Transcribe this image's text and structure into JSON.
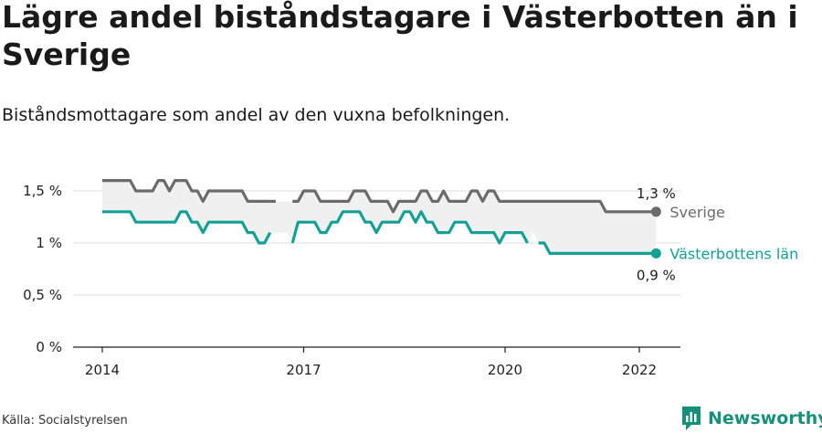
{
  "title": "Lägre andel biståndstagare i Västerbotten än i Sverige",
  "subtitle": "Biståndsmottagare som andel av den vuxna befolkningen.",
  "source": "Källa: Socialstyrelsen",
  "brand": {
    "name": "Newsworthy",
    "icon": "newsworthy-logo-icon",
    "color": "#16907a"
  },
  "chart_data": {
    "type": "line",
    "x_ticks": [
      "2014",
      "2017",
      "2020",
      "2022"
    ],
    "y_ticks": [
      "0 %",
      "0,5 %",
      "1 %",
      "1,5 %"
    ],
    "ylim": [
      0,
      1.6
    ],
    "grid": true,
    "series": [
      {
        "name": "Sverige",
        "color": "#6b6b6b",
        "end_label": "1,3 %",
        "points": [
          [
            "2014-01",
            1.6
          ],
          [
            "2014-02",
            1.6
          ],
          [
            "2014-03",
            1.6
          ],
          [
            "2014-04",
            1.6
          ],
          [
            "2014-05",
            1.6
          ],
          [
            "2014-06",
            1.6
          ],
          [
            "2014-07",
            1.5
          ],
          [
            "2014-08",
            1.5
          ],
          [
            "2014-09",
            1.5
          ],
          [
            "2014-10",
            1.5
          ],
          [
            "2014-11",
            1.6
          ],
          [
            "2014-12",
            1.6
          ],
          [
            "2015-01",
            1.5
          ],
          [
            "2015-02",
            1.6
          ],
          [
            "2015-03",
            1.6
          ],
          [
            "2015-04",
            1.6
          ],
          [
            "2015-05",
            1.5
          ],
          [
            "2015-06",
            1.5
          ],
          [
            "2015-07",
            1.4
          ],
          [
            "2015-08",
            1.5
          ],
          [
            "2015-09",
            1.5
          ],
          [
            "2015-10",
            1.5
          ],
          [
            "2015-11",
            1.5
          ],
          [
            "2015-12",
            1.5
          ],
          [
            "2016-01",
            1.5
          ],
          [
            "2016-02",
            1.5
          ],
          [
            "2016-03",
            1.4
          ],
          [
            "2016-04",
            1.4
          ],
          [
            "2016-05",
            1.4
          ],
          [
            "2016-06",
            1.4
          ],
          [
            "2016-07",
            1.4
          ],
          [
            "2016-08",
            1.4
          ],
          [
            "2016-09",
            null
          ],
          [
            "2016-10",
            null
          ],
          [
            "2016-11",
            1.4
          ],
          [
            "2016-12",
            1.4
          ],
          [
            "2017-01",
            1.5
          ],
          [
            "2017-02",
            1.5
          ],
          [
            "2017-03",
            1.5
          ],
          [
            "2017-04",
            1.4
          ],
          [
            "2017-05",
            1.4
          ],
          [
            "2017-06",
            1.4
          ],
          [
            "2017-07",
            1.4
          ],
          [
            "2017-08",
            1.4
          ],
          [
            "2017-09",
            1.4
          ],
          [
            "2017-10",
            1.5
          ],
          [
            "2017-11",
            1.5
          ],
          [
            "2017-12",
            1.5
          ],
          [
            "2018-01",
            1.4
          ],
          [
            "2018-02",
            1.4
          ],
          [
            "2018-03",
            1.4
          ],
          [
            "2018-04",
            1.4
          ],
          [
            "2018-05",
            1.3
          ],
          [
            "2018-06",
            1.4
          ],
          [
            "2018-07",
            1.4
          ],
          [
            "2018-08",
            1.4
          ],
          [
            "2018-09",
            1.4
          ],
          [
            "2018-10",
            1.5
          ],
          [
            "2018-11",
            1.5
          ],
          [
            "2018-12",
            1.4
          ],
          [
            "2019-01",
            1.4
          ],
          [
            "2019-02",
            1.5
          ],
          [
            "2019-03",
            1.4
          ],
          [
            "2019-04",
            1.4
          ],
          [
            "2019-05",
            1.4
          ],
          [
            "2019-06",
            1.4
          ],
          [
            "2019-07",
            1.5
          ],
          [
            "2019-08",
            1.5
          ],
          [
            "2019-09",
            1.4
          ],
          [
            "2019-10",
            1.5
          ],
          [
            "2019-11",
            1.5
          ],
          [
            "2019-12",
            1.4
          ],
          [
            "2020-01",
            1.4
          ],
          [
            "2020-02",
            1.4
          ],
          [
            "2020-03",
            1.4
          ],
          [
            "2020-04",
            1.4
          ],
          [
            "2020-05",
            1.4
          ],
          [
            "2020-06",
            1.4
          ],
          [
            "2020-07",
            1.4
          ],
          [
            "2020-08",
            1.4
          ],
          [
            "2020-09",
            1.4
          ],
          [
            "2020-10",
            1.4
          ],
          [
            "2020-11",
            1.4
          ],
          [
            "2020-12",
            1.4
          ],
          [
            "2021-01",
            1.4
          ],
          [
            "2021-02",
            1.4
          ],
          [
            "2021-03",
            1.4
          ],
          [
            "2021-04",
            1.4
          ],
          [
            "2021-05",
            1.4
          ],
          [
            "2021-06",
            1.4
          ],
          [
            "2021-07",
            1.3
          ],
          [
            "2021-08",
            1.3
          ],
          [
            "2021-09",
            1.3
          ],
          [
            "2021-10",
            1.3
          ],
          [
            "2021-11",
            1.3
          ],
          [
            "2021-12",
            1.3
          ],
          [
            "2022-01",
            1.3
          ],
          [
            "2022-02",
            1.3
          ],
          [
            "2022-03",
            1.3
          ],
          [
            "2022-04",
            1.3
          ]
        ]
      },
      {
        "name": "Västerbottens län",
        "color": "#13a095",
        "end_label": "0,9 %",
        "points": [
          [
            "2014-01",
            1.3
          ],
          [
            "2014-02",
            1.3
          ],
          [
            "2014-03",
            1.3
          ],
          [
            "2014-04",
            1.3
          ],
          [
            "2014-05",
            1.3
          ],
          [
            "2014-06",
            1.3
          ],
          [
            "2014-07",
            1.2
          ],
          [
            "2014-08",
            1.2
          ],
          [
            "2014-09",
            1.2
          ],
          [
            "2014-10",
            1.2
          ],
          [
            "2014-11",
            1.2
          ],
          [
            "2014-12",
            1.2
          ],
          [
            "2015-01",
            1.2
          ],
          [
            "2015-02",
            1.2
          ],
          [
            "2015-03",
            1.3
          ],
          [
            "2015-04",
            1.3
          ],
          [
            "2015-05",
            1.2
          ],
          [
            "2015-06",
            1.2
          ],
          [
            "2015-07",
            1.1
          ],
          [
            "2015-08",
            1.2
          ],
          [
            "2015-09",
            1.2
          ],
          [
            "2015-10",
            1.2
          ],
          [
            "2015-11",
            1.2
          ],
          [
            "2015-12",
            1.2
          ],
          [
            "2016-01",
            1.2
          ],
          [
            "2016-02",
            1.2
          ],
          [
            "2016-03",
            1.1
          ],
          [
            "2016-04",
            1.1
          ],
          [
            "2016-05",
            1.0
          ],
          [
            "2016-06",
            1.0
          ],
          [
            "2016-07",
            1.1
          ],
          [
            "2016-08",
            null
          ],
          [
            "2016-09",
            null
          ],
          [
            "2016-10",
            null
          ],
          [
            "2016-11",
            1.0
          ],
          [
            "2016-12",
            1.2
          ],
          [
            "2017-01",
            1.2
          ],
          [
            "2017-02",
            1.2
          ],
          [
            "2017-03",
            1.2
          ],
          [
            "2017-04",
            1.1
          ],
          [
            "2017-05",
            1.1
          ],
          [
            "2017-06",
            1.2
          ],
          [
            "2017-07",
            1.2
          ],
          [
            "2017-08",
            1.3
          ],
          [
            "2017-09",
            1.3
          ],
          [
            "2017-10",
            1.3
          ],
          [
            "2017-11",
            1.3
          ],
          [
            "2017-12",
            1.2
          ],
          [
            "2018-01",
            1.2
          ],
          [
            "2018-02",
            1.1
          ],
          [
            "2018-03",
            1.2
          ],
          [
            "2018-04",
            1.2
          ],
          [
            "2018-05",
            1.2
          ],
          [
            "2018-06",
            1.2
          ],
          [
            "2018-07",
            1.3
          ],
          [
            "2018-08",
            1.3
          ],
          [
            "2018-09",
            1.2
          ],
          [
            "2018-10",
            1.3
          ],
          [
            "2018-11",
            1.2
          ],
          [
            "2018-12",
            1.2
          ],
          [
            "2019-01",
            1.1
          ],
          [
            "2019-02",
            1.1
          ],
          [
            "2019-03",
            1.1
          ],
          [
            "2019-04",
            1.2
          ],
          [
            "2019-05",
            1.2
          ],
          [
            "2019-06",
            1.2
          ],
          [
            "2019-07",
            1.1
          ],
          [
            "2019-08",
            1.1
          ],
          [
            "2019-09",
            1.1
          ],
          [
            "2019-10",
            1.1
          ],
          [
            "2019-11",
            1.1
          ],
          [
            "2019-12",
            1.0
          ],
          [
            "2020-01",
            1.1
          ],
          [
            "2020-02",
            1.1
          ],
          [
            "2020-03",
            1.1
          ],
          [
            "2020-04",
            1.1
          ],
          [
            "2020-05",
            1.0
          ],
          [
            "2020-06",
            null
          ],
          [
            "2020-07",
            1.0
          ],
          [
            "2020-08",
            1.0
          ],
          [
            "2020-09",
            0.9
          ],
          [
            "2020-10",
            0.9
          ],
          [
            "2020-11",
            0.9
          ],
          [
            "2020-12",
            0.9
          ],
          [
            "2021-01",
            0.9
          ],
          [
            "2021-02",
            0.9
          ],
          [
            "2021-03",
            0.9
          ],
          [
            "2021-04",
            0.9
          ],
          [
            "2021-05",
            0.9
          ],
          [
            "2021-06",
            0.9
          ],
          [
            "2021-07",
            0.9
          ],
          [
            "2021-08",
            0.9
          ],
          [
            "2021-09",
            0.9
          ],
          [
            "2021-10",
            0.9
          ],
          [
            "2021-11",
            0.9
          ],
          [
            "2021-12",
            0.9
          ],
          [
            "2022-01",
            0.9
          ],
          [
            "2022-02",
            0.9
          ],
          [
            "2022-03",
            0.9
          ],
          [
            "2022-04",
            0.9
          ]
        ]
      }
    ]
  }
}
